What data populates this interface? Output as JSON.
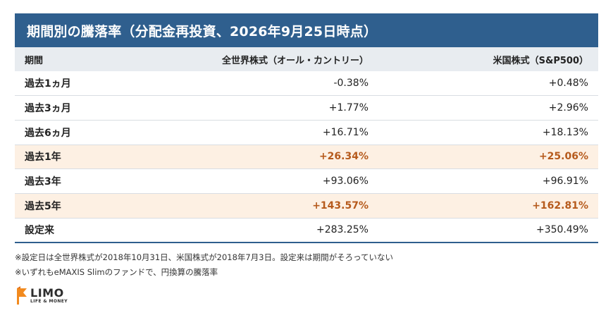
{
  "title": "期間別の騰落率（分配金再投資、2026年9月25日時点）",
  "table": {
    "headers": [
      "期間",
      "全世界株式（オール・カントリー）",
      "米国株式（S&P500）"
    ],
    "rows": [
      {
        "period": "過去1ヵ月",
        "world": "-0.38%",
        "us": "+0.48%",
        "highlight": false
      },
      {
        "period": "過去3ヵ月",
        "world": "+1.77%",
        "us": "+2.96%",
        "highlight": false
      },
      {
        "period": "過去6ヵ月",
        "world": "+16.71%",
        "us": "+18.13%",
        "highlight": false
      },
      {
        "period": "過去1年",
        "world": "+26.34%",
        "us": "+25.06%",
        "highlight": true
      },
      {
        "period": "過去3年",
        "world": "+93.06%",
        "us": "+96.91%",
        "highlight": false
      },
      {
        "period": "過去5年",
        "world": "+143.57%",
        "us": "+162.81%",
        "highlight": true
      },
      {
        "period": "設定来",
        "world": "+283.25%",
        "us": "+350.49%",
        "highlight": false
      }
    ]
  },
  "notes": [
    "※設定日は全世界株式が2018年10月31日、米国株式が2018年7月3日。設定来は期間がそろっていない",
    "※いずれもeMAXIS Slimのファンドで、円換算の騰落率"
  ],
  "logo": {
    "name": "LIMO",
    "tagline": "LIFE & MONEY",
    "icon": "limo-flag-icon"
  },
  "colors": {
    "header_bg": "#2f5f8e",
    "highlight_bg": "#fdf0e3",
    "highlight_text": "#b65a1c"
  }
}
